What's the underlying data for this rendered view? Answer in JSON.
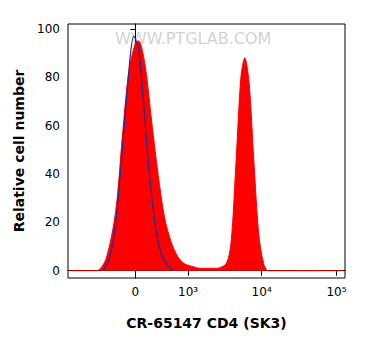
{
  "chart_data": {
    "type": "area",
    "xlabel": "CR-65147 CD4 (SK3)",
    "ylabel": "Relative cell number",
    "annotations": [
      "WWW.PTGLAB.COM"
    ],
    "xlim": [
      -1600,
      130000
    ],
    "xticks": [
      {
        "value": 0,
        "label": "0"
      },
      {
        "value": 1000,
        "label": "10³"
      },
      {
        "value": 10000,
        "label": "10⁴"
      },
      {
        "value": 100000,
        "label": "10⁵"
      }
    ],
    "ylim": [
      -3,
      102
    ],
    "yticks": [
      0,
      20,
      40,
      60,
      80,
      100
    ],
    "grid": false,
    "series": [
      {
        "color": "#ff0000",
        "type": "area",
        "x": [
          -1487,
          -619,
          -421,
          -261,
          -169,
          -83,
          0,
          41,
          125,
          214,
          311,
          421,
          548,
          696,
          873,
          1085,
          1487,
          2480,
          3358,
          3900,
          4540,
          5280,
          5950,
          6780,
          7880,
          9160,
          10640,
          12370,
          123000
        ],
        "values": [
          0,
          0,
          5,
          25,
          55,
          82,
          94,
          95,
          85,
          62,
          40,
          22,
          12,
          6,
          3,
          2,
          1,
          1,
          3,
          12,
          45,
          80,
          88,
          78,
          45,
          15,
          3,
          0,
          0
        ]
      },
      {
        "color": "#2b2b8f",
        "type": "line",
        "x": [
          -482,
          -364,
          -261,
          -169,
          -83,
          -20,
          41,
          104,
          168,
          261,
          364,
          482,
          619
        ],
        "values": [
          0,
          5,
          20,
          50,
          82,
          97,
          92,
          70,
          45,
          20,
          7,
          2,
          0
        ]
      }
    ]
  }
}
